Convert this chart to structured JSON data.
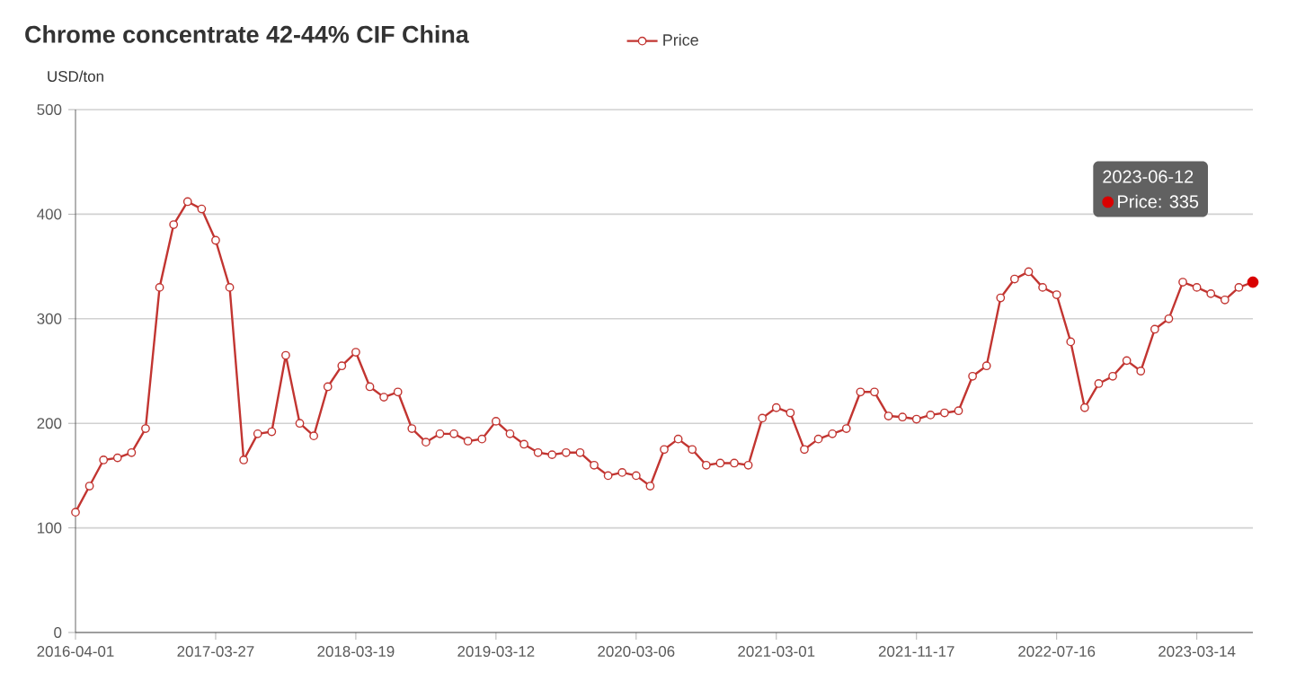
{
  "chart_data": {
    "type": "line",
    "title": "Chrome concentrate 42-44% CIF China",
    "ylabel": "USD/ton",
    "categories": [
      "2016-04-01",
      null,
      null,
      null,
      null,
      null,
      null,
      null,
      null,
      null,
      "2017-03-27",
      null,
      null,
      null,
      null,
      null,
      null,
      null,
      null,
      null,
      "2018-03-19",
      null,
      null,
      null,
      null,
      null,
      null,
      null,
      null,
      null,
      "2019-03-12",
      null,
      null,
      null,
      null,
      null,
      null,
      null,
      null,
      null,
      "2020-03-06",
      null,
      null,
      null,
      null,
      null,
      null,
      null,
      null,
      null,
      "2021-03-01",
      null,
      null,
      null,
      null,
      null,
      null,
      null,
      null,
      null,
      "2021-11-17",
      null,
      null,
      null,
      null,
      null,
      null,
      null,
      null,
      null,
      "2022-07-16",
      null,
      null,
      null,
      null,
      null,
      null,
      null,
      null,
      null,
      "2023-03-14",
      null,
      null,
      null,
      null
    ],
    "series": [
      {
        "name": "Price",
        "color": "#c23531",
        "values": [
          115,
          140,
          165,
          167,
          172,
          195,
          330,
          390,
          412,
          405,
          375,
          330,
          165,
          190,
          192,
          265,
          200,
          188,
          235,
          255,
          268,
          235,
          225,
          230,
          195,
          182,
          190,
          190,
          183,
          185,
          202,
          190,
          180,
          172,
          170,
          172,
          172,
          160,
          150,
          153,
          150,
          140,
          175,
          185,
          175,
          160,
          162,
          162,
          160,
          205,
          215,
          210,
          175,
          185,
          190,
          195,
          230,
          230,
          207,
          206,
          204,
          208,
          210,
          212,
          245,
          255,
          320,
          338,
          345,
          330,
          323,
          278,
          215,
          238,
          245,
          260,
          250,
          290,
          300,
          335,
          330,
          324,
          318,
          330,
          335
        ]
      }
    ],
    "ylim": [
      0,
      500
    ],
    "yticks": [
      0,
      100,
      200,
      300,
      400,
      500
    ],
    "grid": "y",
    "legend": "top",
    "marker": "circle",
    "line_style": "solid",
    "annotations": [
      "2023-06-12",
      "Price: 335"
    ]
  }
}
